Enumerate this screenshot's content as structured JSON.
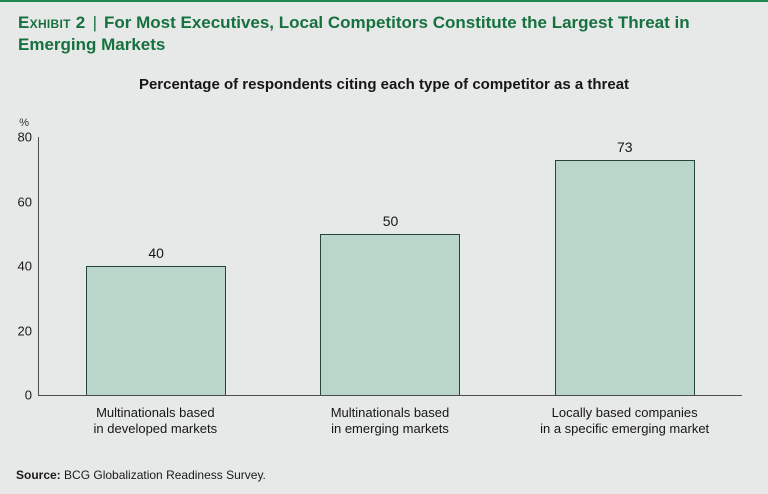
{
  "exhibit": {
    "label": "Exhibit 2",
    "divider": "|",
    "title": "For Most Executives, Local Competitors Constitute the Largest Threat in Emerging Markets"
  },
  "chart_data": {
    "type": "bar",
    "title": "Percentage of respondents citing each type of competitor as a threat",
    "categories": [
      "Multinationals based\nin developed markets",
      "Multinationals based\nin emerging markets",
      "Locally based companies\nin a specific emerging market"
    ],
    "values": [
      40,
      50,
      73
    ],
    "data_labels": [
      "40",
      "50",
      "73"
    ],
    "xlabel": "",
    "ylabel": "%",
    "yticks": [
      0,
      20,
      40,
      60,
      80
    ],
    "ylim": [
      0,
      80
    ],
    "grid": false,
    "legend": "none",
    "bar_fill": "#bad6cb",
    "bar_border": "#24453c"
  },
  "source": {
    "label": "Source:",
    "text": " BCG Globalization Readiness Survey."
  },
  "colors": {
    "title_green": "#17713f",
    "top_rule_green": "#1e8a50",
    "background": "#e6e9e7",
    "axis": "#4d4d4d"
  }
}
